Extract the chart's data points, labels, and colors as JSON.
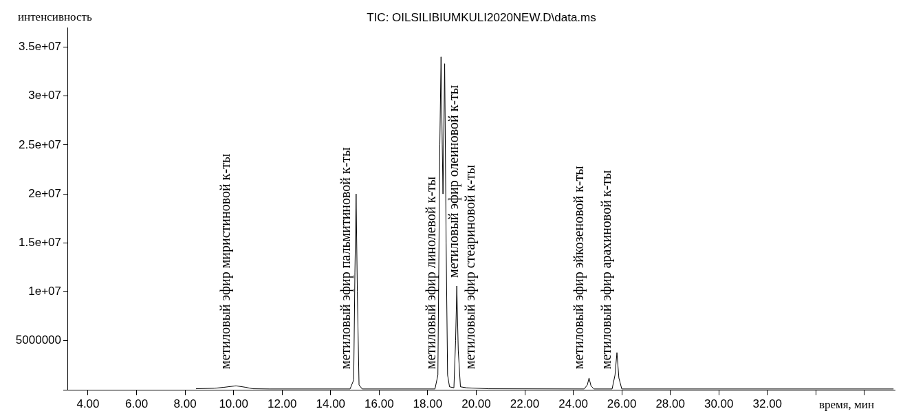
{
  "chart_data": {
    "type": "line",
    "title": "TIC: OILSILIBIUMKULI2020NEW.D\\data.ms",
    "xlabel": "время, мин",
    "ylabel": "интенсивность",
    "xlim": [
      3.15,
      37.25
    ],
    "ylim": [
      0,
      37000000
    ],
    "xticks": [
      {
        "value": 4,
        "label": "4.00"
      },
      {
        "value": 6,
        "label": "6.00"
      },
      {
        "value": 8,
        "label": "8.00"
      },
      {
        "value": 10,
        "label": "10.00"
      },
      {
        "value": 12,
        "label": "12.00"
      },
      {
        "value": 14,
        "label": "14.00"
      },
      {
        "value": 16,
        "label": "16.00"
      },
      {
        "value": 18,
        "label": "18.00"
      },
      {
        "value": 20,
        "label": "20.00"
      },
      {
        "value": 22,
        "label": "22.00"
      },
      {
        "value": 24,
        "label": "24.00"
      },
      {
        "value": 26,
        "label": "26.00"
      },
      {
        "value": 28,
        "label": "28.00"
      },
      {
        "value": 30,
        "label": "30.00"
      },
      {
        "value": 32,
        "label": "32.00"
      },
      {
        "value": 34,
        "label": null
      },
      {
        "value": 36,
        "label": null
      }
    ],
    "yticks": [
      {
        "value": 0,
        "label": null
      },
      5000000,
      {
        "value": 10000000,
        "label": "1e+07"
      },
      {
        "value": 15000000,
        "label": "1.5e+07"
      },
      {
        "value": 20000000,
        "label": "2e+07"
      },
      {
        "value": 25000000,
        "label": "2.5e+07"
      },
      {
        "value": 30000000,
        "label": "3e+07"
      },
      {
        "value": 35000000,
        "label": "3.5e+07"
      }
    ],
    "grid": false,
    "legend": false,
    "marker": "none",
    "line_style": "solid",
    "series": [
      {
        "color": "#000000",
        "x": [
          8.45,
          9.2,
          9.6,
          10.1,
          10.5,
          10.8,
          11.5,
          14.8,
          14.95,
          15.0,
          15.05,
          15.1,
          15.17,
          15.3,
          18.3,
          18.42,
          18.5,
          18.55,
          18.6,
          18.63,
          18.7,
          18.76,
          18.82,
          18.9,
          19.08,
          19.15,
          19.2,
          19.26,
          19.35,
          19.6,
          20.5,
          24.45,
          24.58,
          24.65,
          24.73,
          24.85,
          25.6,
          25.72,
          25.8,
          25.88,
          26.0,
          37.2
        ],
        "values": [
          100000,
          150000,
          250000,
          400000,
          250000,
          100000,
          80000,
          80000,
          1000000,
          12000000,
          20000000,
          10000000,
          500000,
          80000,
          80000,
          1500000,
          25000000,
          34000000,
          25000000,
          20000000,
          33300000,
          15000000,
          1500000,
          300000,
          200000,
          5000000,
          10600000,
          4000000,
          300000,
          200000,
          100000,
          80000,
          500000,
          1200000,
          400000,
          80000,
          80000,
          1500000,
          3800000,
          1200000,
          80000,
          80000
        ]
      }
    ],
    "annotations": [
      "метиловый эфир миристиновой к-ты",
      "метиловый эфир пальмитиновой к-ты",
      "метиловый эфир линолевой к-ты",
      "метиловый эфир олеиновой к-ты",
      "метиловый эфир стеариновой к-ты",
      "метиловый эфир эйкозеновой к-ты",
      "метиловый эфир арахиновой к-ты"
    ]
  }
}
